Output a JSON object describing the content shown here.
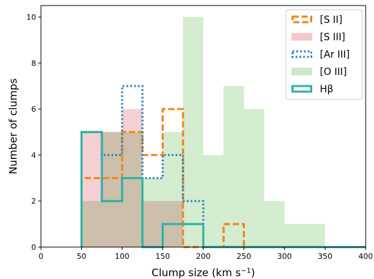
{
  "chart_data": {
    "type": "histogram",
    "title": "",
    "xlabel_main": "Clump size (km s",
    "xlabel_sup": "−1",
    "xlabel_tail": ")",
    "ylabel": "Number of clumps",
    "xlim": [
      0,
      400
    ],
    "ylim": [
      0,
      10.5
    ],
    "xticks": [
      "0",
      "50",
      "100",
      "150",
      "200",
      "250",
      "300",
      "350",
      "400"
    ],
    "yticks": [
      "0",
      "2",
      "4",
      "6",
      "8",
      "10"
    ],
    "grid": false,
    "legend_position": "top-right",
    "bin_edges": [
      50,
      75,
      100,
      125,
      150,
      175,
      200,
      225,
      250,
      275,
      300,
      325,
      350,
      375,
      400
    ],
    "series": [
      {
        "name": "[S III]",
        "style": "filled",
        "color": "#f4c7cb",
        "values": [
          5,
          5,
          6,
          2,
          2,
          0,
          0,
          0,
          0,
          0,
          0,
          0,
          0,
          0
        ]
      },
      {
        "name": "[O III]",
        "style": "filled",
        "color": "#cde9c7",
        "values": [
          2,
          5,
          5,
          3,
          5,
          10,
          4,
          7,
          6,
          2,
          1,
          1,
          0,
          0
        ]
      },
      {
        "name": "[S II]",
        "style": "dashed-step",
        "color": "#f0861b",
        "values": [
          3,
          3,
          5,
          4,
          6,
          0,
          0,
          1,
          0,
          0,
          0,
          0,
          0,
          0
        ]
      },
      {
        "name": "[Ar III]",
        "style": "dotted-step",
        "color": "#2e83bd",
        "values": [
          5,
          4,
          7,
          3,
          4,
          2,
          0,
          0,
          0,
          0,
          0,
          0,
          0,
          0
        ]
      },
      {
        "name": "Hβ",
        "style": "solid-step",
        "color": "#2db2a6",
        "values": [
          5,
          2,
          3,
          0,
          1,
          1,
          0,
          0,
          0,
          0,
          0,
          0,
          0,
          0
        ]
      }
    ],
    "legend_order": [
      "[S II]",
      "[S III]",
      "[Ar III]",
      "[O III]",
      "Hβ"
    ]
  }
}
